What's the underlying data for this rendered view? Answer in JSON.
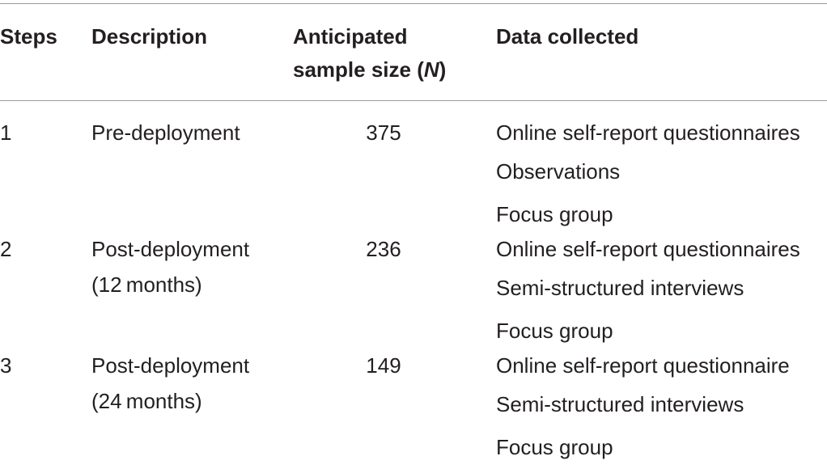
{
  "table": {
    "headers": {
      "steps": "Steps",
      "description": "Description",
      "sample_size_line1": "Anticipated",
      "sample_size_line2_prefix": "sample size (",
      "sample_size_line2_var": "N",
      "sample_size_line2_suffix": ")",
      "data_collected": "Data collected"
    },
    "rows": [
      {
        "step": "1",
        "description": [
          "Pre-deployment"
        ],
        "sample_size": "375",
        "data_collected": [
          "Online self-report questionnaires",
          "Observations",
          "Focus group"
        ]
      },
      {
        "step": "2",
        "description": [
          "Post-deployment",
          "(12 months)"
        ],
        "sample_size": "236",
        "data_collected": [
          "Online self-report questionnaires",
          "Semi-structured interviews",
          "Focus group"
        ]
      },
      {
        "step": "3",
        "description": [
          "Post-deployment",
          "(24 months)"
        ],
        "sample_size": "149",
        "data_collected": [
          "Online self-report questionnaire",
          "Semi-structured interviews",
          "Focus group"
        ]
      }
    ]
  }
}
